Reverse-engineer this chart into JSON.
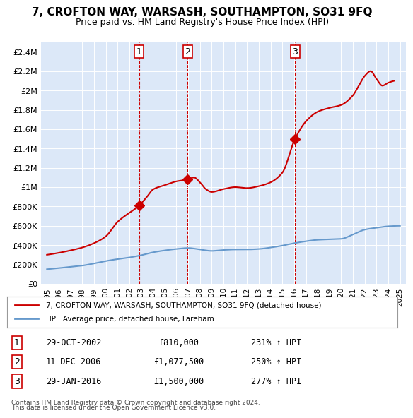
{
  "title": "7, CROFTON WAY, WARSASH, SOUTHAMPTON, SO31 9FQ",
  "subtitle": "Price paid vs. HM Land Registry's House Price Index (HPI)",
  "ylabel": "",
  "background_color": "#f0f4ff",
  "plot_bg": "#dce8f8",
  "sales": [
    {
      "date_num": 2002.83,
      "price": 810000,
      "label": "1",
      "date_str": "29-OCT-2002",
      "pct": "231%"
    },
    {
      "date_num": 2006.94,
      "price": 1077500,
      "label": "2",
      "date_str": "11-DEC-2006",
      "pct": "250%"
    },
    {
      "date_num": 2016.08,
      "price": 1500000,
      "label": "3",
      "date_str": "29-JAN-2016",
      "pct": "277%"
    }
  ],
  "hpi_line_color": "#6699cc",
  "property_line_color": "#cc0000",
  "vline_color": "#cc0000",
  "ylim": [
    0,
    2500000
  ],
  "xlim": [
    1994.5,
    2025.5
  ],
  "yticks": [
    0,
    200000,
    400000,
    600000,
    800000,
    1000000,
    1200000,
    1400000,
    1600000,
    1800000,
    2000000,
    2200000,
    2400000
  ],
  "ytick_labels": [
    "£0",
    "£200K",
    "£400K",
    "£600K",
    "£800K",
    "£1M",
    "£1.2M",
    "£1.4M",
    "£1.6M",
    "£1.8M",
    "£2M",
    "£2.2M",
    "£2.4M"
  ],
  "xticks": [
    1995,
    1996,
    1997,
    1998,
    1999,
    2000,
    2001,
    2002,
    2003,
    2004,
    2005,
    2006,
    2007,
    2008,
    2009,
    2010,
    2011,
    2012,
    2013,
    2014,
    2015,
    2016,
    2017,
    2018,
    2019,
    2020,
    2021,
    2022,
    2023,
    2024,
    2025
  ],
  "legend_line1": "7, CROFTON WAY, WARSASH, SOUTHAMPTON, SO31 9FQ (detached house)",
  "legend_line2": "HPI: Average price, detached house, Fareham",
  "footer1": "Contains HM Land Registry data © Crown copyright and database right 2024.",
  "footer2": "This data is licensed under the Open Government Licence v3.0."
}
